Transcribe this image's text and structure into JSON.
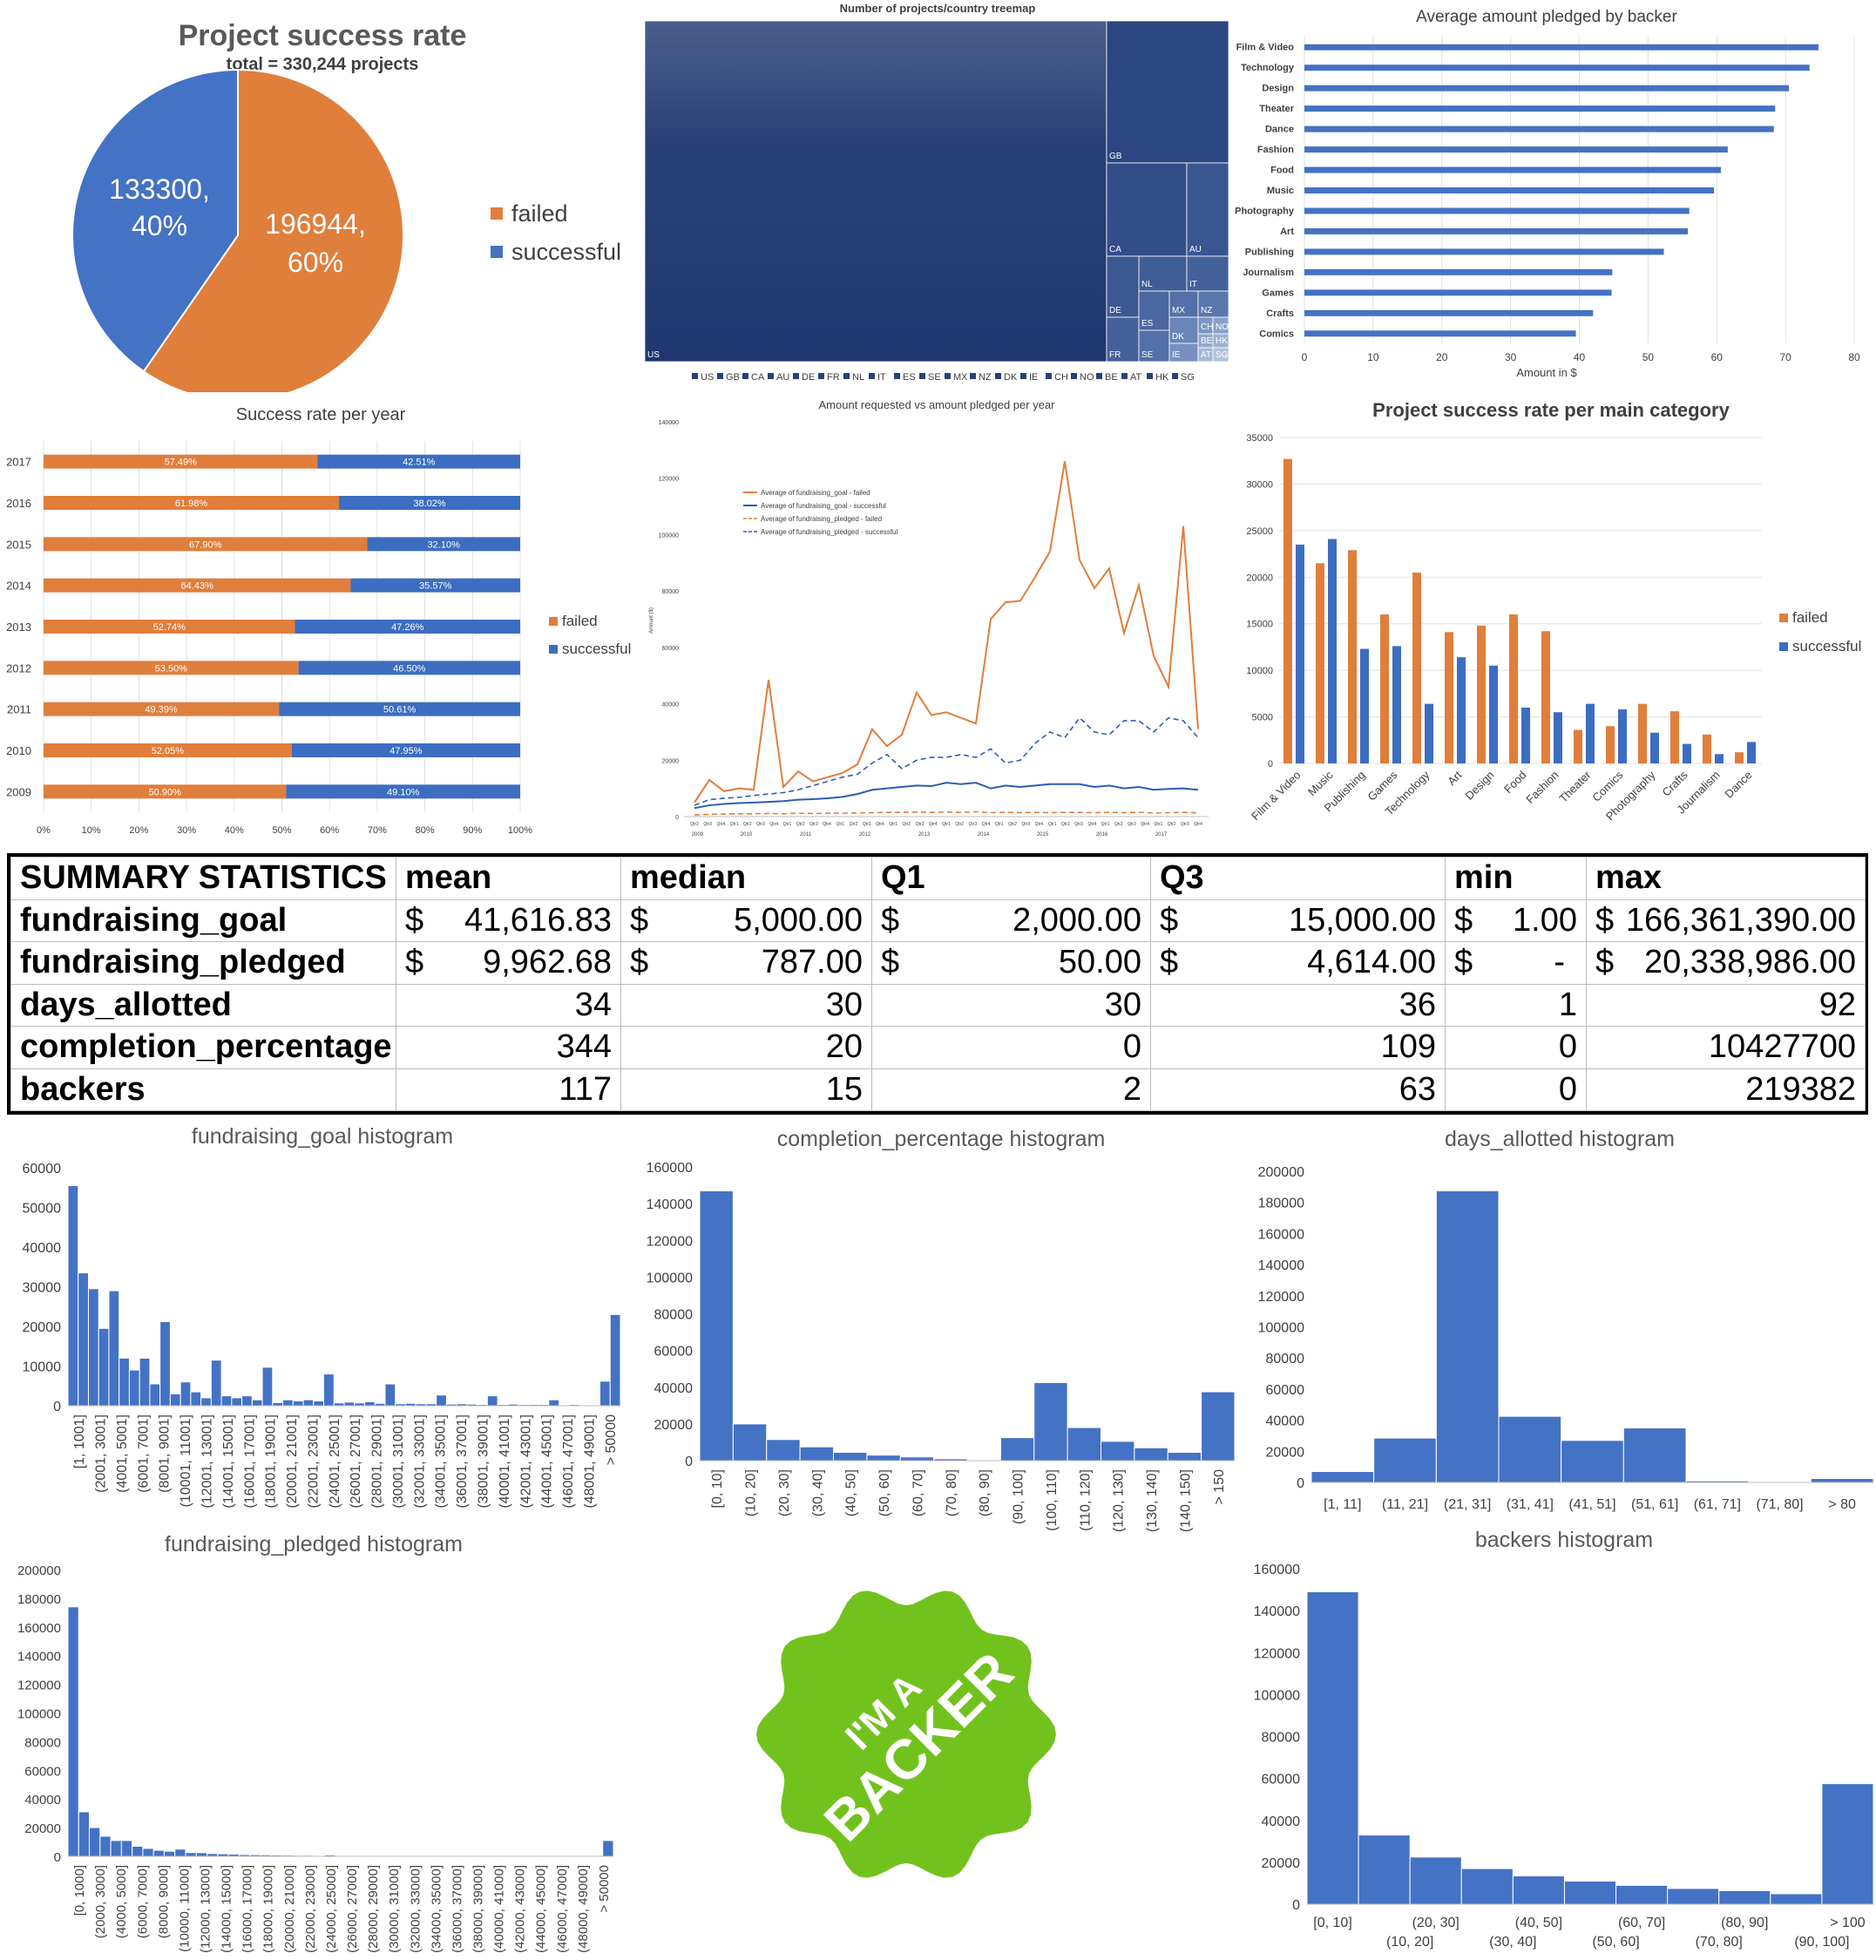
{
  "chart_data": [
    {
      "id": "pie",
      "type": "pie",
      "title": "Project success rate",
      "subtitle": "total = 330,244 projects",
      "slices": [
        {
          "name": "failed",
          "value": 196944,
          "label": "196944,",
          "pct_label": "60%",
          "color": "#E07E3C"
        },
        {
          "name": "successful",
          "value": 133300,
          "label": "133300,",
          "pct_label": "40%",
          "color": "#4472C4"
        }
      ]
    },
    {
      "id": "treemap",
      "type": "treemap",
      "title": "Number of projects/country treemap",
      "legend": [
        "US",
        "GB",
        "CA",
        "AU",
        "DE",
        "FR",
        "NL",
        "IT",
        "ES",
        "SE",
        "MX",
        "NZ",
        "DK",
        "IE",
        "CH",
        "NO",
        "BE",
        "AT",
        "HK",
        "SG"
      ],
      "tiles": [
        {
          "label": "US",
          "value": 266000
        },
        {
          "label": "GB",
          "value": 29000
        },
        {
          "label": "CA",
          "value": 12600
        },
        {
          "label": "AU",
          "value": 6400
        },
        {
          "label": "NL",
          "value": 2500
        },
        {
          "label": "IT",
          "value": 2400
        },
        {
          "label": "DE",
          "value": 3300
        },
        {
          "label": "FR",
          "value": 2600
        },
        {
          "label": "ES",
          "value": 1900
        },
        {
          "label": "MX",
          "value": 1600
        },
        {
          "label": "NZ",
          "value": 1300
        },
        {
          "label": "SE",
          "value": 1500
        },
        {
          "label": "DK",
          "value": 900
        },
        {
          "label": "CH",
          "value": 650
        },
        {
          "label": "NO",
          "value": 580
        },
        {
          "label": "BE",
          "value": 520
        },
        {
          "label": "HK",
          "value": 500
        },
        {
          "label": "IE",
          "value": 640
        },
        {
          "label": "AT",
          "value": 480
        },
        {
          "label": "SG",
          "value": 450
        }
      ]
    },
    {
      "id": "avgpledge",
      "type": "bar",
      "orientation": "horizontal",
      "title": "Average amount pledged by backer",
      "xlabel": "Amount in $",
      "xlim": [
        0,
        80
      ],
      "xticks": [
        0,
        10,
        20,
        30,
        40,
        50,
        60,
        70,
        80
      ],
      "categories": [
        "Film & Video",
        "Technology",
        "Design",
        "Theater",
        "Dance",
        "Fashion",
        "Food",
        "Music",
        "Photography",
        "Art",
        "Publishing",
        "Journalism",
        "Games",
        "Crafts",
        "Comics"
      ],
      "values": [
        74.8,
        73.5,
        70.5,
        68.5,
        68.3,
        61.6,
        60.6,
        59.6,
        56,
        55.8,
        52.3,
        44.8,
        44.7,
        42,
        39.5
      ]
    },
    {
      "id": "yearrate",
      "type": "bar",
      "orientation": "horizontal-stacked-100",
      "title": "Success rate per year",
      "categories": [
        "2017",
        "2016",
        "2015",
        "2014",
        "2013",
        "2012",
        "2011",
        "2010",
        "2009"
      ],
      "series": [
        {
          "name": "failed",
          "values": [
            57.49,
            61.98,
            67.9,
            64.43,
            52.74,
            53.5,
            49.39,
            52.05,
            50.9
          ],
          "labels": [
            "57.49%",
            "61.98%",
            "67.90%",
            "64.43%",
            "52.74%",
            "53.50%",
            "49.39%",
            "52.05%",
            "50.90%"
          ]
        },
        {
          "name": "successful",
          "values": [
            42.51,
            38.02,
            32.1,
            35.57,
            47.26,
            46.5,
            50.61,
            47.95,
            49.1
          ],
          "labels": [
            "42.51%",
            "38.02%",
            "32.10%",
            "35.57%",
            "47.26%",
            "46.50%",
            "50.61%",
            "47.95%",
            "49.10%"
          ]
        }
      ],
      "xticks": [
        "0%",
        "10%",
        "20%",
        "30%",
        "40%",
        "50%",
        "60%",
        "70%",
        "80%",
        "90%",
        "100%"
      ]
    },
    {
      "id": "reqpledged",
      "type": "line",
      "title": "Amount requested vs amount pledged per year",
      "ylabel": "Amount ($)",
      "ylim": [
        0,
        140000
      ],
      "yticks": [
        0,
        20000,
        40000,
        60000,
        80000,
        100000,
        120000,
        140000
      ],
      "quarter_labels": [
        "Qtr2",
        "Qtr3",
        "Qtr4",
        "Qtr1",
        "Qtr2",
        "Qtr3",
        "Qtr4",
        "Qtr1",
        "Qtr2",
        "Qtr3",
        "Qtr4",
        "Qtr1",
        "Qtr2",
        "Qtr3",
        "Qtr4",
        "Qtr1",
        "Qtr2",
        "Qtr3",
        "Qtr4",
        "Qtr1",
        "Qtr2",
        "Qtr3",
        "Qtr4",
        "Qtr1",
        "Qtr2",
        "Qtr3",
        "Qtr4",
        "Qtr1",
        "Qtr2",
        "Qtr3",
        "Qtr4",
        "Qtr1",
        "Qtr2",
        "Qtr3",
        "Qtr4",
        "Qtr1",
        "Qtr2",
        "Qtr3",
        "Qtr4"
      ],
      "year_labels": [
        "2009",
        "2010",
        "2011",
        "2012",
        "2013",
        "2014",
        "2015",
        "2016",
        "2017"
      ],
      "series": [
        {
          "name": "Average of fundraising_goal - failed",
          "values": [
            5000,
            13000,
            9000,
            10000,
            9500,
            48500,
            10500,
            16000,
            12500,
            14000,
            15500,
            18500,
            31000,
            25000,
            29000,
            44000,
            36000,
            37000,
            35000,
            33000,
            70000,
            76000,
            76500,
            85000,
            94000,
            126000,
            91000,
            81000,
            88000,
            65000,
            82000,
            57000,
            46000,
            103000,
            31000
          ]
        },
        {
          "name": "Average of fundraising_goal - successful",
          "values": [
            3000,
            4000,
            4500,
            4800,
            5000,
            5200,
            5500,
            6000,
            6200,
            6500,
            7000,
            8000,
            9500,
            10000,
            10500,
            11000,
            10800,
            12000,
            11500,
            12000,
            10000,
            11000,
            10500,
            11000,
            11500,
            11500,
            11500,
            10500,
            11000,
            10000,
            10500,
            9500,
            9800,
            10000,
            9500
          ]
        },
        {
          "name": "Average of fundraising_pledged - failed",
          "values": [
            600,
            800,
            900,
            1000,
            1000,
            1100,
            1000,
            1200,
            1100,
            1200,
            1200,
            1300,
            1400,
            1500,
            1500,
            1600,
            1500,
            1600,
            1500,
            1700,
            1400,
            1500,
            1400,
            1500,
            1400,
            1500,
            1500,
            1400,
            1500,
            1400,
            1500,
            1300,
            1400,
            1500,
            1300
          ]
        },
        {
          "name": "Average of fundraising_pledged - successful",
          "values": [
            4000,
            6000,
            6500,
            6800,
            7500,
            8000,
            8500,
            9500,
            11000,
            12500,
            14000,
            15000,
            19000,
            22000,
            17000,
            20000,
            21000,
            21000,
            22000,
            21000,
            24000,
            19000,
            20000,
            26000,
            30000,
            28000,
            35000,
            30000,
            29000,
            34000,
            34000,
            30000,
            35000,
            34000,
            28000
          ]
        }
      ]
    },
    {
      "id": "categoryrate",
      "type": "bar",
      "title": "Project success rate per main category",
      "ylim": [
        0,
        35000
      ],
      "yticks": [
        0,
        5000,
        10000,
        15000,
        20000,
        25000,
        30000,
        35000
      ],
      "categories": [
        "Film & Video",
        "Music",
        "Publishing",
        "Games",
        "Technology",
        "Art",
        "Design",
        "Food",
        "Fashion",
        "Theater",
        "Comics",
        "Photography",
        "Crafts",
        "Journalism",
        "Dance"
      ],
      "series": [
        {
          "name": "failed",
          "values": [
            32700,
            21500,
            22900,
            16000,
            20500,
            14100,
            14800,
            16000,
            14200,
            3600,
            4000,
            6400,
            5600,
            3100,
            1200
          ]
        },
        {
          "name": "successful",
          "values": [
            23500,
            24100,
            12300,
            12600,
            6400,
            11400,
            10500,
            6000,
            5500,
            6400,
            5800,
            3300,
            2100,
            1000,
            2300
          ]
        }
      ]
    },
    {
      "id": "goalhist",
      "type": "bar",
      "title": "fundraising_goal histogram",
      "ylim": [
        0,
        60000
      ],
      "yticks": [
        0,
        10000,
        20000,
        30000,
        40000,
        50000,
        60000
      ],
      "tick_labels": [
        "[1, 1001]",
        "(2001, 3001]",
        "(4001, 5001]",
        "(6001, 7001]",
        "(8001, 9001]",
        "(10001, 11001]",
        "(12001, 13001]",
        "(14001, 15001]",
        "(16001, 17001]",
        "(18001, 19001]",
        "(20001, 21001]",
        "(22001, 23001]",
        "(24001, 25001]",
        "(26001, 27001]",
        "(28001, 29001]",
        "(30001, 31001]",
        "(32001, 33001]",
        "(34001, 35001]",
        "(36001, 37001]",
        "(38001, 39001]",
        "(40001, 41001]",
        "(42001, 43001]",
        "(44001, 45001]",
        "(46001, 47001]",
        "(48001, 49001]",
        "> 50000"
      ],
      "values": [
        55500,
        33500,
        29500,
        19500,
        29000,
        12000,
        9000,
        12000,
        5500,
        21200,
        3000,
        6000,
        3500,
        2000,
        11500,
        2500,
        2000,
        2500,
        1500,
        9700,
        800,
        1500,
        1200,
        1500,
        1200,
        8000,
        700,
        900,
        700,
        1000,
        600,
        5500,
        500,
        600,
        500,
        500,
        2700,
        400,
        500,
        400,
        300,
        2500,
        300,
        400,
        300,
        300,
        300,
        1500,
        200,
        300,
        200,
        200,
        6200,
        23000
      ]
    },
    {
      "id": "completionhist",
      "type": "bar",
      "title": "completion_percentage histogram",
      "ylim": [
        0,
        160000
      ],
      "yticks": [
        0,
        20000,
        40000,
        60000,
        80000,
        100000,
        120000,
        140000,
        160000
      ],
      "categories": [
        "[0, 10]",
        "(10, 20]",
        "(20, 30]",
        "(30, 40]",
        "(40, 50]",
        "(50, 60]",
        "(60, 70]",
        "(70, 80]",
        "(80, 90]",
        "(90, 100]",
        "(100, 110]",
        "(110, 120]",
        "(120, 130]",
        "(130, 140]",
        "(140, 150]",
        "> 150"
      ],
      "values": [
        147000,
        20000,
        11500,
        7500,
        4500,
        3000,
        2000,
        1000,
        500,
        12500,
        42500,
        18000,
        10500,
        7000,
        4500,
        37500
      ]
    },
    {
      "id": "dayshist",
      "type": "bar",
      "title": "days_allotted histogram",
      "ylim": [
        0,
        200000
      ],
      "yticks": [
        0,
        20000,
        40000,
        60000,
        80000,
        100000,
        120000,
        140000,
        160000,
        180000,
        200000
      ],
      "categories": [
        "[1, 11]",
        "(11, 21]",
        "(21, 31]",
        "(31, 41]",
        "(41, 51]",
        "(51, 61]",
        "(61, 71]",
        "(71, 80]",
        "> 80"
      ],
      "values": [
        7000,
        28500,
        187500,
        42500,
        27000,
        35000,
        1000,
        500,
        2500
      ]
    },
    {
      "id": "pledgedhist",
      "type": "bar",
      "title": "fundraising_pledged histogram",
      "ylim": [
        0,
        200000
      ],
      "yticks": [
        0,
        20000,
        40000,
        60000,
        80000,
        100000,
        120000,
        140000,
        160000,
        180000,
        200000
      ],
      "tick_labels": [
        "[0, 1000]",
        "(2000, 3000]",
        "(4000, 5000]",
        "(6000, 7000]",
        "(8000, 9000]",
        "(10000, 11000]",
        "(12000, 13000]",
        "(14000, 15000]",
        "(16000, 17000]",
        "(18000, 19000]",
        "(20000, 21000]",
        "(22000, 23000]",
        "(24000, 25000]",
        "(26000, 27000]",
        "(28000, 29000]",
        "(30000, 31000]",
        "(32000, 33000]",
        "(34000, 35000]",
        "(36000, 37000]",
        "(38000, 39000]",
        "(40000, 41000]",
        "(42000, 43000]",
        "(44000, 45000]",
        "(46000, 47000]",
        "(48000, 49000]",
        "> 50000"
      ],
      "values": [
        174000,
        31000,
        20000,
        14000,
        11000,
        11000,
        7000,
        5500,
        4200,
        3500,
        5000,
        2600,
        2500,
        1900,
        1700,
        1500,
        1200,
        1100,
        1000,
        900,
        800,
        700,
        700,
        600,
        900,
        500,
        500,
        400,
        400,
        300,
        500,
        300,
        300,
        300,
        300,
        250,
        250,
        250,
        250,
        200,
        200,
        200,
        200,
        200,
        200,
        200,
        200,
        200,
        200,
        200,
        11000
      ]
    },
    {
      "id": "backershist",
      "type": "bar",
      "title": "backers histogram",
      "ylim": [
        0,
        160000
      ],
      "yticks": [
        0,
        20000,
        40000,
        60000,
        80000,
        100000,
        120000,
        140000,
        160000
      ],
      "categories": [
        "[0, 10]",
        "(10, 20]",
        "(20, 30]",
        "(30, 40]",
        "(40, 50]",
        "(50, 60]",
        "(60, 70]",
        "(70, 80]",
        "(80, 90]",
        "(90, 100]",
        "> 100"
      ],
      "values": [
        149000,
        33000,
        22500,
        17000,
        13500,
        11000,
        9000,
        7500,
        6500,
        5000,
        57500
      ]
    }
  ],
  "legend": {
    "failed": "failed",
    "successful": "successful"
  },
  "colors": {
    "orange": "#E07E3C",
    "blue": "#4472C4",
    "navy": "#22386E",
    "badge_green": "#72C21E"
  },
  "summary": {
    "header": [
      "SUMMARY STATISTICS",
      "mean",
      "median",
      "Q1",
      "Q3",
      "min",
      "max"
    ],
    "rows": [
      {
        "label": "fundraising_goal",
        "mean": "41,616.83",
        "median": "5,000.00",
        "q1": "2,000.00",
        "q3": "15,000.00",
        "min": "1.00",
        "max": "166,361,390.00"
      },
      {
        "label": "fundraising_pledged",
        "mean": "9,962.68",
        "median": "787.00",
        "q1": "50.00",
        "q3": "4,614.00",
        "min": "-",
        "max": "20,338,986.00"
      },
      {
        "label": "days_allotted",
        "mean": "34",
        "median": "30",
        "q1": "30",
        "q3": "36",
        "min": "1",
        "max": "92"
      },
      {
        "label": "completion_percentage",
        "mean": "344",
        "median": "20",
        "q1": "0",
        "q3": "109",
        "min": "0",
        "max": "10427700"
      },
      {
        "label": "backers",
        "mean": "117",
        "median": "15",
        "q1": "2",
        "q3": "63",
        "min": "0",
        "max": "219382"
      }
    ],
    "currency": "$"
  },
  "badge": {
    "line1": "I'M A",
    "line2": "BACKER"
  }
}
